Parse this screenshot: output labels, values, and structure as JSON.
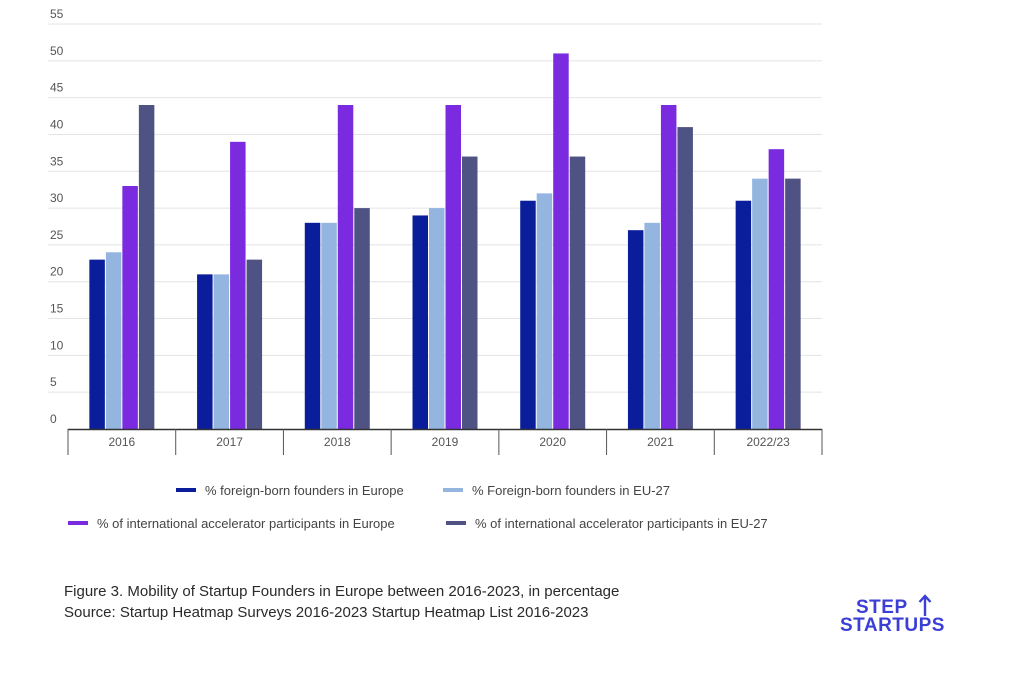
{
  "chart_data": {
    "type": "bar",
    "title": "",
    "xlabel": "",
    "ylabel": "",
    "ylim": [
      0,
      55
    ],
    "ytick_step": 5,
    "grid": true,
    "legend_position": "bottom-center",
    "categories": [
      "2016",
      "2017",
      "2018",
      "2019",
      "2020",
      "2021",
      "2022/23"
    ],
    "series": [
      {
        "name": "% foreign-born founders in Europe",
        "color": "#0a1e9b",
        "values": [
          23,
          21,
          28,
          29,
          31,
          27,
          31
        ]
      },
      {
        "name": "% Foreign-born founders in EU-27",
        "color": "#93b5e0",
        "values": [
          24,
          21,
          28,
          30,
          32,
          28,
          34
        ]
      },
      {
        "name": "% of international accelerator participants in Europe",
        "color": "#7a2be0",
        "values": [
          33,
          39,
          44,
          44,
          51,
          44,
          38
        ]
      },
      {
        "name": "% of international accelerator participants in EU-27",
        "color": "#4f5384",
        "values": [
          44,
          23,
          30,
          37,
          37,
          41,
          34
        ]
      }
    ]
  },
  "caption": {
    "line1": "Figure 3. Mobility of Startup Founders in Europe between 2016-2023, in percentage",
    "line2": "Source: Startup Heatmap Surveys 2016-2023 Startup Heatmap List 2016-2023"
  },
  "logo": {
    "line1": "STEP",
    "line2": "STARTUPS",
    "color": "#3c3fd6",
    "icon": "arrow-up-icon"
  }
}
